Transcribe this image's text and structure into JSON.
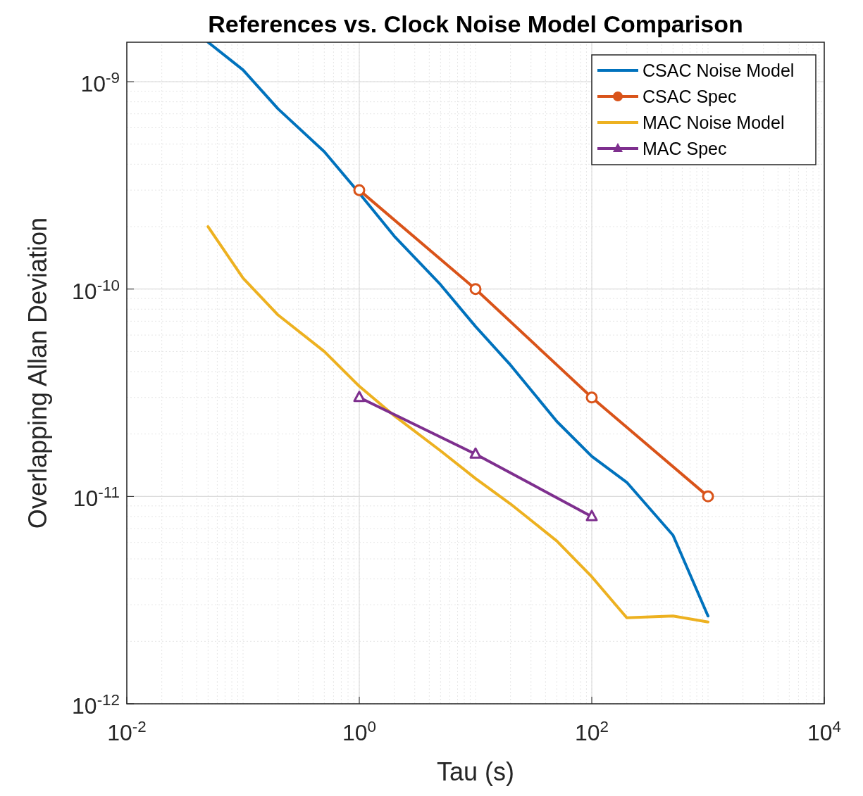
{
  "chart_data": {
    "type": "line",
    "title": "References vs. Clock Noise Model Comparison",
    "xlabel": "Tau (s)",
    "ylabel": "Overlapping Allan Deviation",
    "log": "xy",
    "grid": true,
    "legend": "top right",
    "line_style": "solid",
    "xlim": [
      0.01,
      10000
    ],
    "ylim": [
      1e-12,
      1.55e-09
    ],
    "xticks": [
      {
        "value": 0.01,
        "label": "10$^{-2}$"
      },
      {
        "value": 1,
        "label": "10$^{0}$"
      },
      {
        "value": 100,
        "label": "10$^{2}$"
      },
      {
        "value": 10000,
        "label": "10$^{4}$"
      }
    ],
    "yticks": [
      {
        "value": 1e-12,
        "label": "10$^{-12}$"
      },
      {
        "value": 1e-11,
        "label": "10$^{-11}$"
      },
      {
        "value": 1e-10,
        "label": "10$^{-10}$"
      },
      {
        "value": 1e-09,
        "label": "10$^{-9}$"
      }
    ],
    "series": [
      {
        "name": "CSAC Noise Model",
        "color": "#0072bd",
        "marker": "none",
        "x": [
          0.05,
          0.1,
          0.2,
          0.5,
          1,
          2,
          5,
          10,
          20,
          50,
          100,
          200,
          500,
          1000
        ],
        "values": [
          1.55e-09,
          1.14e-09,
          7.4e-10,
          4.6e-10,
          2.9e-10,
          1.8e-10,
          1.05e-10,
          6.6e-11,
          4.3e-11,
          2.3e-11,
          1.56e-11,
          1.17e-11,
          6.5e-12,
          2.65e-12
        ]
      },
      {
        "name": "CSAC Spec",
        "color": "#d95319",
        "marker": "circle",
        "x": [
          1,
          10,
          100,
          1000
        ],
        "values": [
          3e-10,
          1e-10,
          3e-11,
          1e-11
        ]
      },
      {
        "name": "MAC Noise Model",
        "color": "#edb120",
        "marker": "none",
        "x": [
          0.05,
          0.1,
          0.2,
          0.5,
          1,
          2,
          5,
          10,
          20,
          50,
          100,
          200,
          500,
          1000
        ],
        "values": [
          2e-10,
          1.13e-10,
          7.5e-11,
          5e-11,
          3.4e-11,
          2.45e-11,
          1.66e-11,
          1.22e-11,
          9.2e-12,
          6.1e-12,
          4.1e-12,
          2.6e-12,
          2.65e-12,
          2.48e-12
        ]
      },
      {
        "name": "MAC Spec",
        "color": "#7e2f8e",
        "marker": "triangle",
        "x": [
          1,
          10,
          100
        ],
        "values": [
          3e-11,
          1.6e-11,
          8e-12
        ]
      }
    ]
  }
}
